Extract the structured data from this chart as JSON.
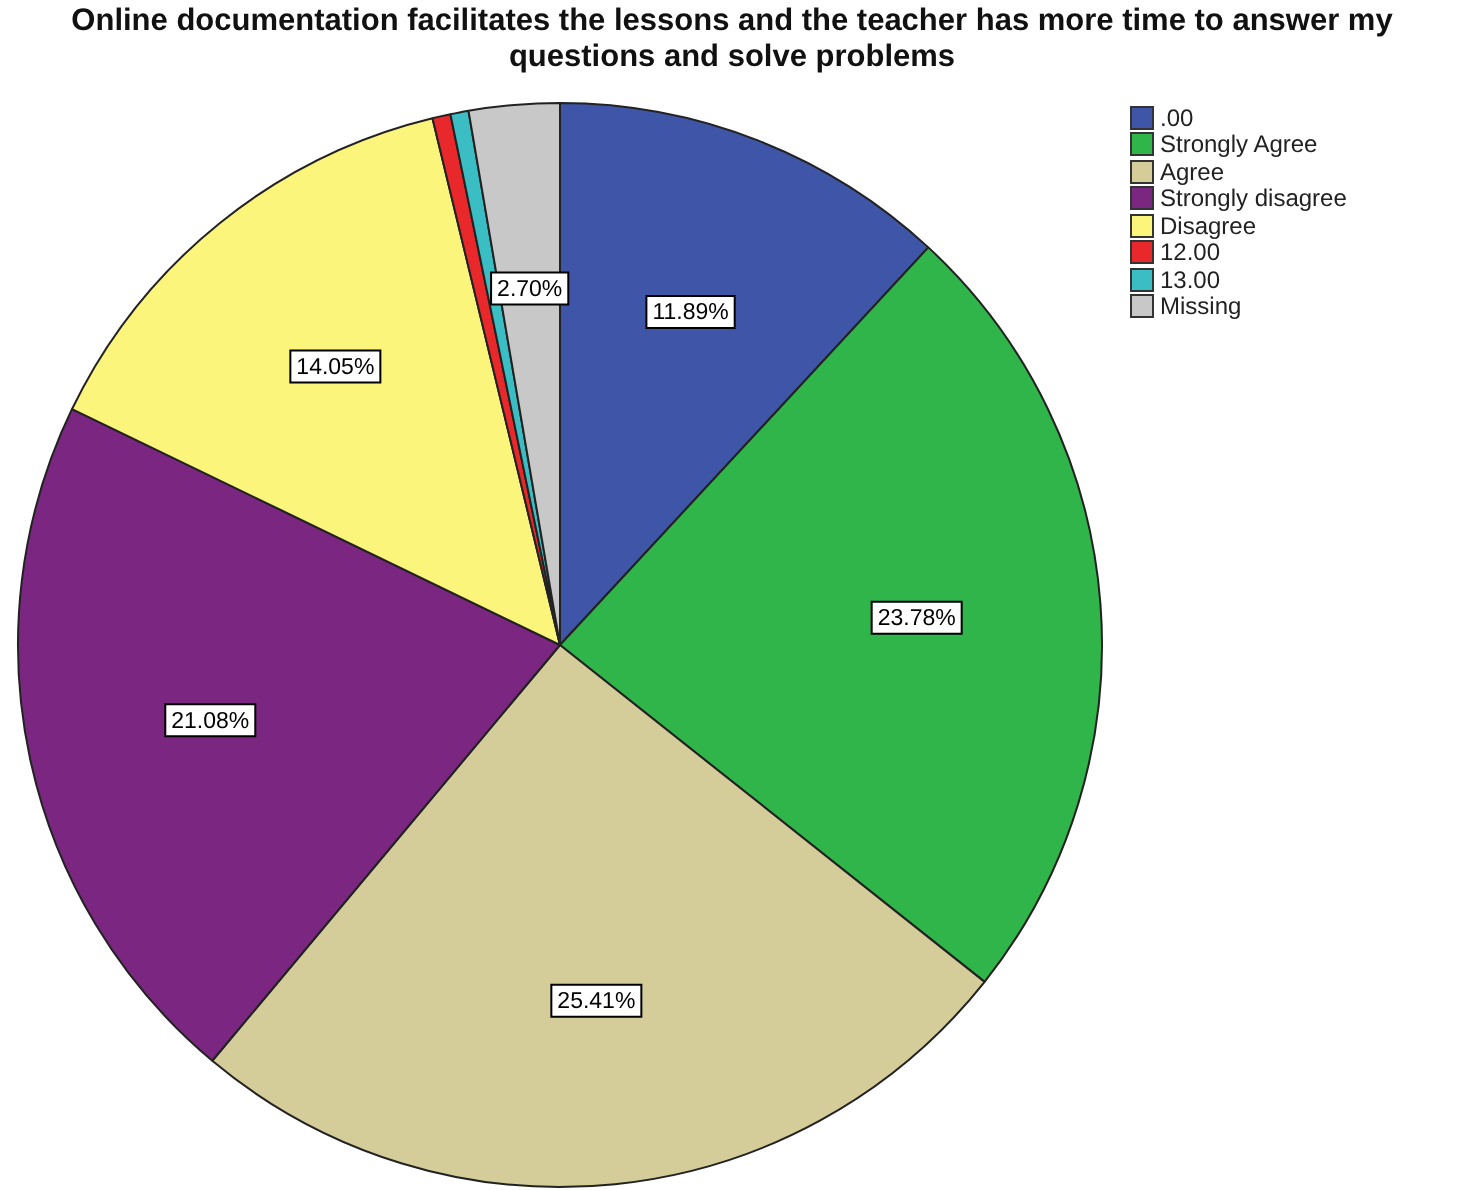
{
  "chart_data": {
    "type": "pie",
    "title": "Online documentation facilitates the lessons and the teacher has more time to answer my questions and solve problems",
    "categories": [
      ".00",
      "Strongly Agree",
      "Agree",
      "Strongly disagree",
      "Disagree",
      "12.00",
      "13.00",
      "Missing"
    ],
    "values": [
      11.89,
      23.78,
      25.41,
      21.08,
      14.05,
      0.54,
      0.54,
      2.7
    ],
    "colors": [
      "#3f56a8",
      "#2fb54a",
      "#d4cc99",
      "#7b2781",
      "#fbf57c",
      "#e8282a",
      "#3bbdc4",
      "#c8c8c8"
    ],
    "value_labels": [
      "11.89%",
      "23.78%",
      "25.41%",
      "21.08%",
      "14.05%",
      null,
      null,
      "2.70%"
    ],
    "legend": "top right"
  }
}
